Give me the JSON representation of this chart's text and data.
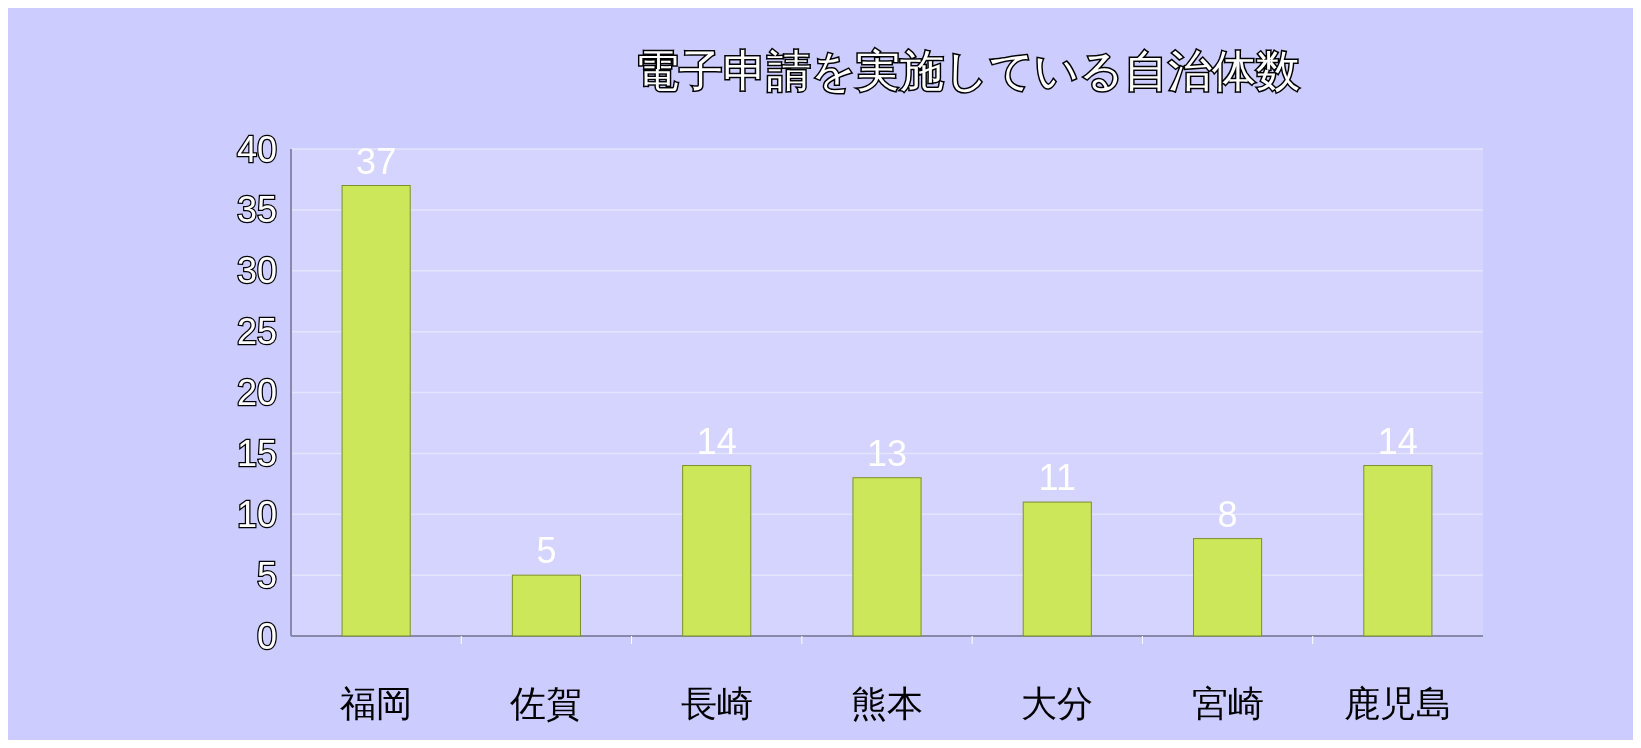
{
  "chart_data": {
    "type": "bar",
    "title": "電子申請を実施している自治体数",
    "categories": [
      "福岡",
      "佐賀",
      "長崎",
      "熊本",
      "大分",
      "宮崎",
      "鹿児島"
    ],
    "values": [
      37,
      5,
      14,
      13,
      11,
      8,
      14
    ],
    "color": "#cce85a",
    "ylim": [
      0,
      40
    ],
    "yticks": [
      0,
      5,
      10,
      15,
      20,
      25,
      30,
      35,
      40
    ],
    "grid": "y",
    "data_labels": true
  }
}
